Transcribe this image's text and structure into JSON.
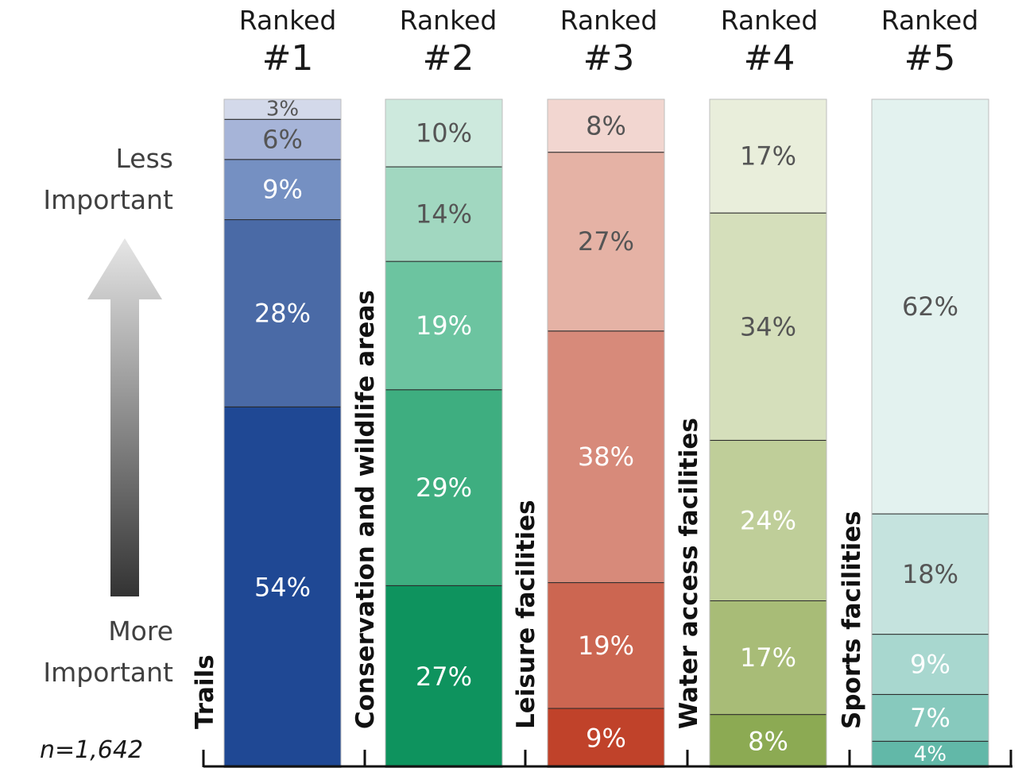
{
  "columns": [
    {
      "ranked": "Ranked",
      "num": "#1"
    },
    {
      "ranked": "Ranked",
      "num": "#2"
    },
    {
      "ranked": "Ranked",
      "num": "#3"
    },
    {
      "ranked": "Ranked",
      "num": "#4"
    },
    {
      "ranked": "Ranked",
      "num": "#5"
    }
  ],
  "axis": {
    "less_line1": "Less",
    "less_line2": "Important",
    "more_line1": "More",
    "more_line2": "Important",
    "n": "n=1,642"
  },
  "chart_data": {
    "type": "bar",
    "stacked": true,
    "categories": [
      "Trails",
      "Conservation and wildlife areas",
      "Leisure facilities",
      "Water access facilities",
      "Sports facilities"
    ],
    "rank_levels": [
      "#1",
      "#2",
      "#3",
      "#4",
      "#5"
    ],
    "values_bottom_to_top": [
      [
        54,
        28,
        9,
        6,
        3
      ],
      [
        27,
        29,
        19,
        14,
        10
      ],
      [
        9,
        19,
        38,
        27,
        8
      ],
      [
        8,
        17,
        24,
        34,
        17
      ],
      [
        4,
        7,
        9,
        18,
        62
      ]
    ],
    "labels_bottom_to_top": [
      [
        "54%",
        "28%",
        "9%",
        "6%",
        "3%"
      ],
      [
        "27%",
        "29%",
        "19%",
        "14%",
        "10%"
      ],
      [
        "9%",
        "19%",
        "38%",
        "27%",
        "8%"
      ],
      [
        "8%",
        "17%",
        "24%",
        "34%",
        "17%"
      ],
      [
        "4%",
        "7%",
        "9%",
        "18%",
        "62%"
      ]
    ],
    "ylim": [
      0,
      100
    ],
    "colors": [
      [
        "#1f4894",
        "#4a6aa6",
        "#7590c2",
        "#a6b4d8",
        "#d3d9ea"
      ],
      [
        "#0e935e",
        "#3eae80",
        "#6cc4a0",
        "#a1d7c0",
        "#cde9dd"
      ],
      [
        "#c0422a",
        "#cc6651",
        "#d78a7a",
        "#e5b2a5",
        "#f2d6d0"
      ],
      [
        "#8caa53",
        "#a8bc77",
        "#bfce99",
        "#d5dfbb",
        "#e9eedb"
      ],
      [
        "#62b8a8",
        "#87c9bd",
        "#a8d7cf",
        "#c5e3de",
        "#e3f2ef"
      ]
    ],
    "text_colors": [
      [
        "#ffffff",
        "#ffffff",
        "#ffffff",
        "#555555",
        "#555555"
      ],
      [
        "#ffffff",
        "#ffffff",
        "#ffffff",
        "#555555",
        "#555555"
      ],
      [
        "#ffffff",
        "#ffffff",
        "#ffffff",
        "#555555",
        "#555555"
      ],
      [
        "#ffffff",
        "#ffffff",
        "#ffffff",
        "#555555",
        "#555555"
      ],
      [
        "#ffffff",
        "#ffffff",
        "#ffffff",
        "#555555",
        "#555555"
      ]
    ]
  }
}
